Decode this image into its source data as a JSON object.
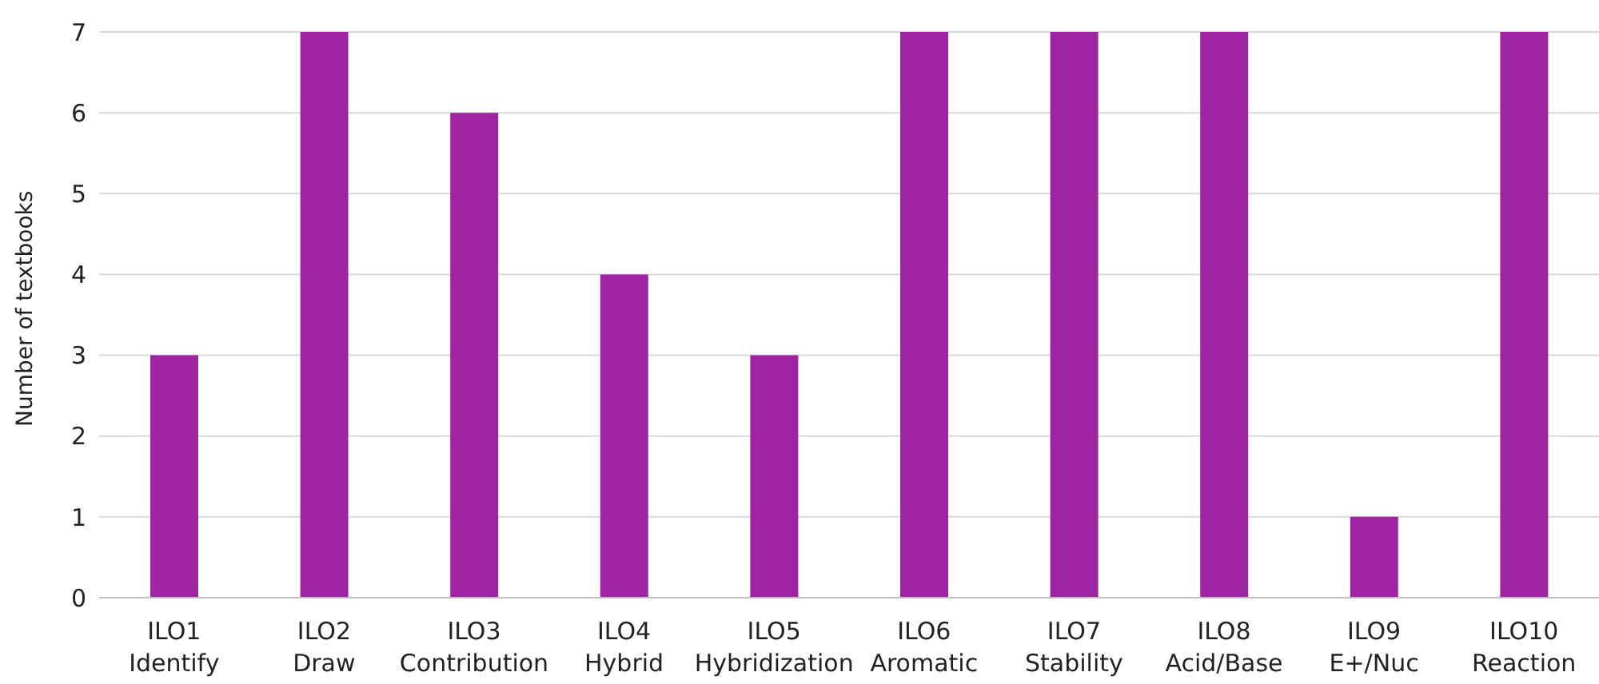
{
  "chart_data": {
    "type": "bar",
    "ylabel": "Number of textbooks",
    "categories": [
      "ILO1\nIdentify",
      "ILO2\nDraw",
      "ILO3\nContribution",
      "ILO4\nHybrid",
      "ILO5\nHybridization",
      "ILO6\nAromatic",
      "ILO7\nStability",
      "ILO8\nAcid/Base",
      "ILO9\nE+/Nuc",
      "ILO10\nReaction"
    ],
    "values": [
      3,
      7,
      6,
      4,
      3,
      7,
      7,
      7,
      1,
      7
    ],
    "color": "#9e24a1",
    "ylim": [
      0,
      7
    ],
    "yticks": [
      0,
      1,
      2,
      3,
      4,
      5,
      6,
      7
    ],
    "grid": "y"
  }
}
